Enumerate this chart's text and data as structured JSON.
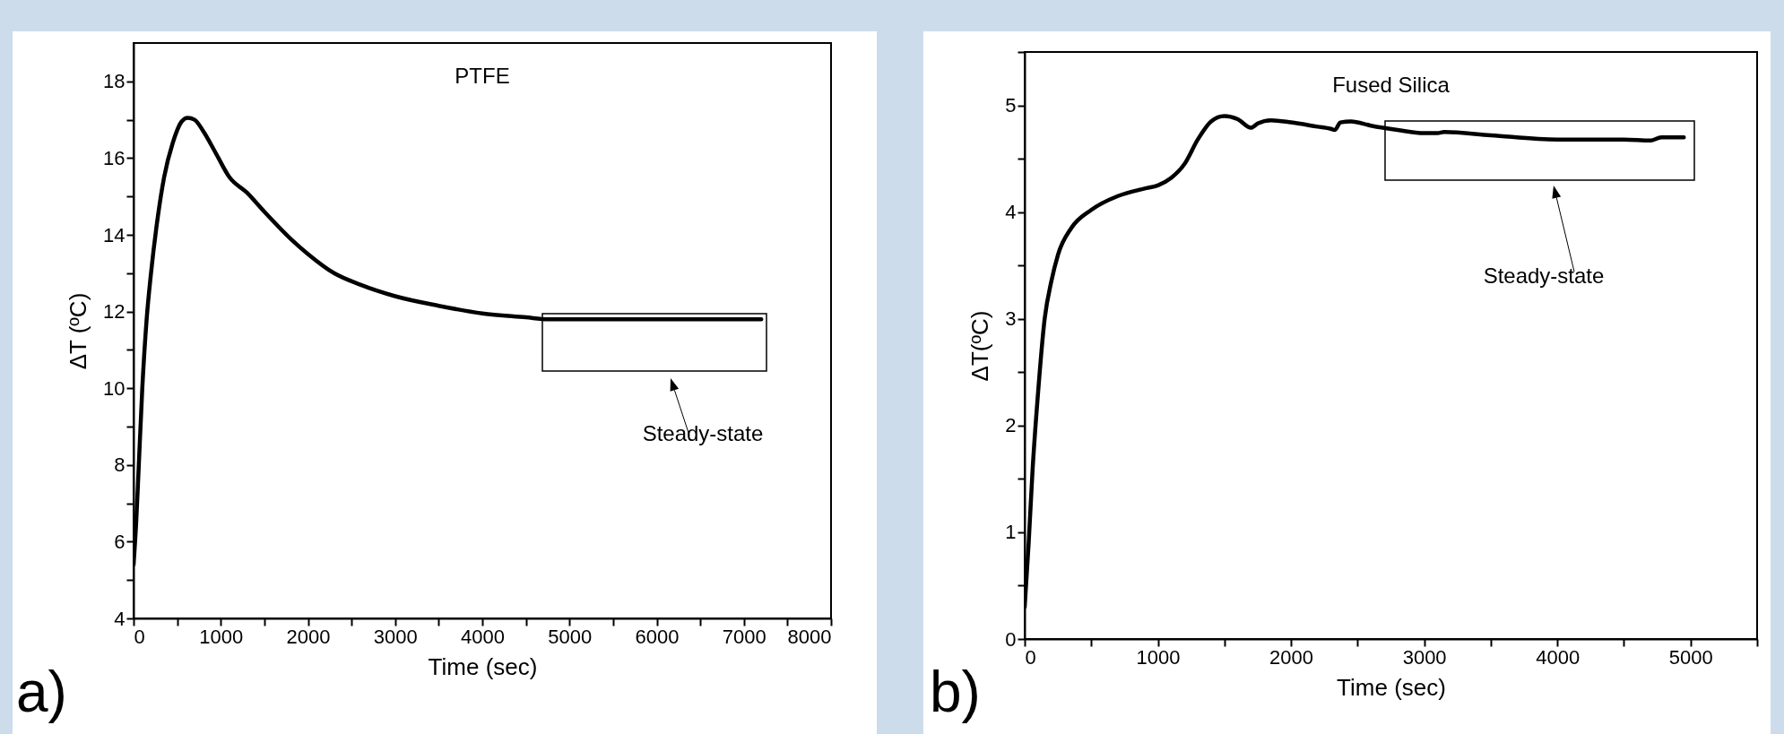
{
  "chart_data": [
    {
      "type": "line",
      "title": "PTFE",
      "xlabel": "Time (sec)",
      "ylabel": "ΔT (ºC)",
      "xlim": [
        0,
        8000
      ],
      "ylim": [
        4,
        19
      ],
      "xticks": [
        0,
        {
          "value": 500,
          "label": null
        },
        1000,
        {
          "value": 1500,
          "label": null
        },
        2000,
        {
          "value": 2500,
          "label": null
        },
        3000,
        {
          "value": 3500,
          "label": null
        },
        4000,
        {
          "value": 4500,
          "label": null
        },
        5000,
        {
          "value": 5500,
          "label": null
        },
        6000,
        {
          "value": 6500,
          "label": null
        },
        7000,
        {
          "value": 7500,
          "label": null
        },
        8000
      ],
      "yticks": [
        4,
        {
          "value": 5,
          "label": null
        },
        6,
        {
          "value": 7,
          "label": null
        },
        8,
        {
          "value": 9,
          "label": null
        },
        10,
        {
          "value": 11,
          "label": null
        },
        12,
        {
          "value": 13,
          "label": null
        },
        14,
        {
          "value": 15,
          "label": null
        },
        16,
        {
          "value": 17,
          "label": null
        },
        18
      ],
      "x": [
        0,
        30,
        60,
        100,
        150,
        200,
        280,
        350,
        450,
        550,
        620,
        700,
        800,
        950,
        1100,
        1300,
        1500,
        1800,
        2000,
        2300,
        2600,
        3000,
        3500,
        4000,
        4500,
        4750,
        5500,
        6500,
        7200
      ],
      "series": [
        {
          "color": "#000000",
          "values": [
            5.4,
            6.5,
            8,
            10,
            11.8,
            13,
            14.5,
            15.5,
            16.4,
            16.95,
            17.05,
            17,
            16.7,
            16.1,
            15.5,
            15.1,
            14.6,
            13.9,
            13.5,
            13,
            12.7,
            12.4,
            12.15,
            11.95,
            11.85,
            11.8,
            11.8,
            11.8,
            11.8
          ]
        }
      ],
      "annotations": [
        "a)",
        "Steady-state"
      ]
    },
    {
      "type": "line",
      "title": "Fused Silica",
      "xlabel": "Time (sec)",
      "ylabel": "ΔT(ºC)",
      "xlim": [
        0,
        5500
      ],
      "ylim": [
        0,
        5.5
      ],
      "xticks": [
        0,
        {
          "value": 500,
          "label": null
        },
        1000,
        {
          "value": 1500,
          "label": null
        },
        2000,
        {
          "value": 2500,
          "label": null
        },
        3000,
        {
          "value": 3500,
          "label": null
        },
        4000,
        {
          "value": 4500,
          "label": null
        },
        5000,
        {
          "value": 5500,
          "label": null
        }
      ],
      "yticks": [
        0,
        {
          "value": 0.5,
          "label": null
        },
        1,
        {
          "value": 1.5,
          "label": null
        },
        2,
        {
          "value": 2.5,
          "label": null
        },
        3,
        {
          "value": 3.5,
          "label": null
        },
        4,
        {
          "value": 4.5,
          "label": null
        },
        5,
        {
          "value": 5.5,
          "label": null
        }
      ],
      "x": [
        0,
        30,
        60,
        100,
        150,
        200,
        250,
        350,
        500,
        700,
        900,
        1000,
        1100,
        1200,
        1300,
        1400,
        1500,
        1600,
        1700,
        1750,
        1850,
        2000,
        2200,
        2300,
        2330,
        2370,
        2450,
        2600,
        2800,
        3000,
        3100,
        3150,
        3500,
        4000,
        4500,
        4700,
        4780,
        4950
      ],
      "series": [
        {
          "color": "#000000",
          "values": [
            0.3,
            0.9,
            1.6,
            2.3,
            3,
            3.35,
            3.6,
            3.85,
            4.02,
            4.15,
            4.22,
            4.25,
            4.32,
            4.45,
            4.68,
            4.85,
            4.9,
            4.87,
            4.79,
            4.83,
            4.86,
            4.84,
            4.8,
            4.78,
            4.77,
            4.84,
            4.85,
            4.81,
            4.77,
            4.74,
            4.74,
            4.75,
            4.72,
            4.68,
            4.68,
            4.67,
            4.7,
            4.7
          ]
        }
      ],
      "annotations": [
        "b)",
        "Steady-state"
      ]
    }
  ]
}
